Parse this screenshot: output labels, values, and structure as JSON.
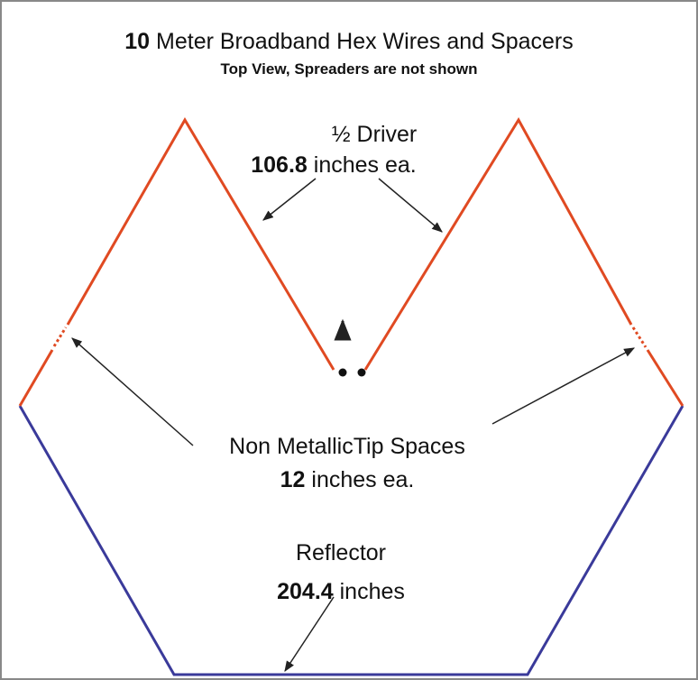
{
  "title": {
    "number": "10",
    "text": "Meter Broadband Hex Wires and Spacers",
    "subtitle": "Top View, Spreaders are not shown"
  },
  "driver": {
    "label": "½ Driver",
    "length": "106.8",
    "unit": "inches ea."
  },
  "spacers": {
    "label": "Non MetallicTip Spaces",
    "length": "12",
    "unit": "inches ea."
  },
  "reflector": {
    "label": "Reflector",
    "length": "204.4",
    "unit": "inches"
  }
}
